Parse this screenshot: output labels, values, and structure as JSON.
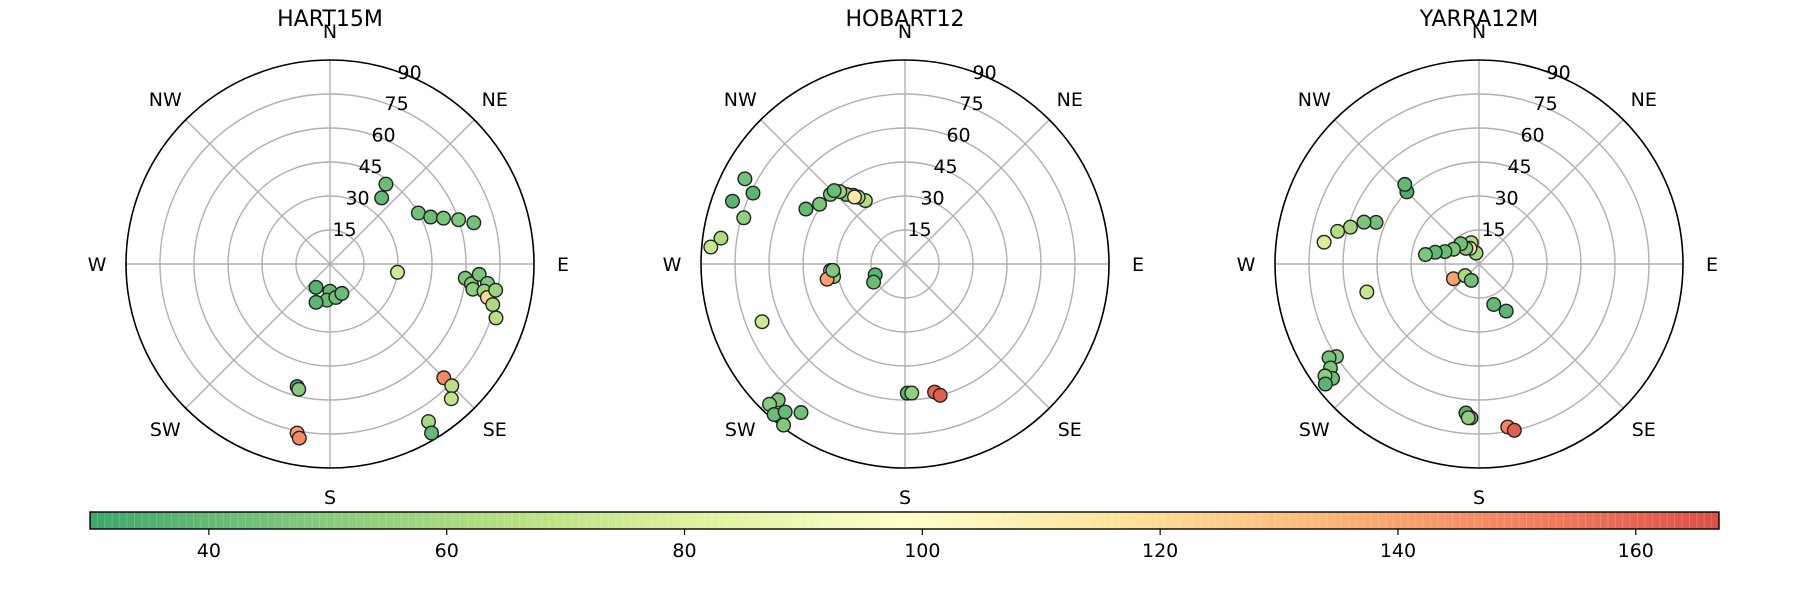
{
  "chart_data": [
    {
      "type": "scatter",
      "projection": "polar",
      "title": "HART15M",
      "direction_labels": [
        "E",
        "NE",
        "N",
        "NW",
        "W",
        "SW",
        "S",
        "SE"
      ],
      "r_ticks": [
        "15",
        "30",
        "45",
        "60",
        "75",
        "90"
      ],
      "rlim": [
        0,
        90
      ],
      "grid": true,
      "points": [
        {
          "az": 35,
          "el": 43,
          "v": 42
        },
        {
          "az": 38,
          "el": 37,
          "v": 40
        },
        {
          "az": 60,
          "el": 45,
          "v": 44
        },
        {
          "az": 65,
          "el": 49,
          "v": 42
        },
        {
          "az": 68,
          "el": 54,
          "v": 46
        },
        {
          "az": 71,
          "el": 60,
          "v": 48
        },
        {
          "az": 74,
          "el": 66,
          "v": 44
        },
        {
          "az": 97,
          "el": 30,
          "v": 74
        },
        {
          "az": 96,
          "el": 60,
          "v": 46
        },
        {
          "az": 98,
          "el": 63,
          "v": 50
        },
        {
          "az": 94,
          "el": 66,
          "v": 46
        },
        {
          "az": 100,
          "el": 64,
          "v": 52
        },
        {
          "az": 97,
          "el": 70,
          "v": 48
        },
        {
          "az": 100,
          "el": 69,
          "v": 56
        },
        {
          "az": 102,
          "el": 71,
          "v": 120
        },
        {
          "az": 104,
          "el": 74,
          "v": 62
        },
        {
          "az": 108,
          "el": 77,
          "v": 66
        },
        {
          "az": 99,
          "el": 74,
          "v": 56
        },
        {
          "az": 135,
          "el": 71,
          "v": 148
        },
        {
          "az": 135,
          "el": 76,
          "v": 66
        },
        {
          "az": 138,
          "el": 80,
          "v": 70
        },
        {
          "az": 148,
          "el": 82,
          "v": 60
        },
        {
          "az": 149,
          "el": 87,
          "v": 40
        },
        {
          "az": 180,
          "el": 12,
          "v": 40
        },
        {
          "az": 185,
          "el": 16,
          "v": 42
        },
        {
          "az": 200,
          "el": 18,
          "v": 38
        },
        {
          "az": 170,
          "el": 15,
          "v": 44
        },
        {
          "az": 158,
          "el": 14,
          "v": 42
        },
        {
          "az": 211,
          "el": 12,
          "v": 36
        },
        {
          "az": 195,
          "el": 56,
          "v": 34
        },
        {
          "az": 194,
          "el": 57,
          "v": 50
        },
        {
          "az": 191,
          "el": 76,
          "v": 140
        },
        {
          "az": 190,
          "el": 78,
          "v": 148
        }
      ]
    },
    {
      "type": "scatter",
      "projection": "polar",
      "title": "HOBART12",
      "direction_labels": [
        "E",
        "NE",
        "N",
        "NW",
        "W",
        "SW",
        "S",
        "SE"
      ],
      "r_ticks": [
        "15",
        "30",
        "45",
        "60",
        "75",
        "90"
      ],
      "rlim": [
        0,
        90
      ],
      "grid": true,
      "points": [
        {
          "az": 328,
          "el": 33,
          "v": 64
        },
        {
          "az": 325,
          "el": 36,
          "v": 60
        },
        {
          "az": 323,
          "el": 38,
          "v": 58
        },
        {
          "az": 320,
          "el": 40,
          "v": 50
        },
        {
          "az": 323,
          "el": 37,
          "v": 112
        },
        {
          "az": 318,
          "el": 43,
          "v": 56
        },
        {
          "az": 313,
          "el": 45,
          "v": 48
        },
        {
          "az": 305,
          "el": 46,
          "v": 46
        },
        {
          "az": 299,
          "el": 50,
          "v": 40
        },
        {
          "az": 316,
          "el": 45,
          "v": 42
        },
        {
          "az": 295,
          "el": 74,
          "v": 38
        },
        {
          "az": 298,
          "el": 80,
          "v": 44
        },
        {
          "az": 290,
          "el": 81,
          "v": 38
        },
        {
          "az": 286,
          "el": 74,
          "v": 54
        },
        {
          "az": 278,
          "el": 82,
          "v": 62
        },
        {
          "az": 275,
          "el": 86,
          "v": 72
        },
        {
          "az": 248,
          "el": 68,
          "v": 74
        },
        {
          "az": 265,
          "el": 33,
          "v": 62
        },
        {
          "az": 260,
          "el": 32,
          "v": 56
        },
        {
          "az": 259,
          "el": 35,
          "v": 140
        },
        {
          "az": 265,
          "el": 32,
          "v": 48
        },
        {
          "az": 250,
          "el": 14,
          "v": 38
        },
        {
          "az": 240,
          "el": 16,
          "v": 42
        },
        {
          "az": 223,
          "el": 82,
          "v": 46
        },
        {
          "az": 224,
          "el": 86,
          "v": 50
        },
        {
          "az": 221,
          "el": 88,
          "v": 42
        },
        {
          "az": 219,
          "el": 84,
          "v": 40
        },
        {
          "az": 215,
          "el": 80,
          "v": 44
        },
        {
          "az": 217,
          "el": 89,
          "v": 48
        },
        {
          "az": 179,
          "el": 57,
          "v": 36
        },
        {
          "az": 177,
          "el": 57,
          "v": 54
        },
        {
          "az": 167,
          "el": 58,
          "v": 160
        },
        {
          "az": 165,
          "el": 60,
          "v": 162
        }
      ]
    },
    {
      "type": "scatter",
      "projection": "polar",
      "title": "YARRA12M",
      "direction_labels": [
        "E",
        "NE",
        "N",
        "NW",
        "W",
        "SW",
        "S",
        "SE"
      ],
      "r_ticks": [
        "15",
        "30",
        "45",
        "60",
        "75",
        "90"
      ],
      "rlim": [
        0,
        90
      ],
      "grid": true,
      "points": [
        {
          "az": 340,
          "el": 10,
          "v": 62
        },
        {
          "az": 345,
          "el": 5,
          "v": 58
        },
        {
          "az": 330,
          "el": 8,
          "v": 120
        },
        {
          "az": 320,
          "el": 9,
          "v": 48
        },
        {
          "az": 318,
          "el": 12,
          "v": 44
        },
        {
          "az": 300,
          "el": 13,
          "v": 48
        },
        {
          "az": 290,
          "el": 16,
          "v": 42
        },
        {
          "az": 285,
          "el": 20,
          "v": 40
        },
        {
          "az": 280,
          "el": 24,
          "v": 46
        },
        {
          "az": 315,
          "el": 45,
          "v": 34
        },
        {
          "az": 317,
          "el": 48,
          "v": 40
        },
        {
          "az": 292,
          "el": 49,
          "v": 44
        },
        {
          "az": 290,
          "el": 54,
          "v": 46
        },
        {
          "az": 286,
          "el": 59,
          "v": 60
        },
        {
          "az": 283,
          "el": 64,
          "v": 64
        },
        {
          "az": 278,
          "el": 69,
          "v": 78
        },
        {
          "az": 256,
          "el": 51,
          "v": 72
        },
        {
          "az": 240,
          "el": 13,
          "v": 140
        },
        {
          "az": 230,
          "el": 8,
          "v": 60
        },
        {
          "az": 205,
          "el": 8,
          "v": 44
        },
        {
          "az": 160,
          "el": 19,
          "v": 40
        },
        {
          "az": 150,
          "el": 24,
          "v": 38
        },
        {
          "az": 237,
          "el": 75,
          "v": 50
        },
        {
          "az": 238,
          "el": 78,
          "v": 44
        },
        {
          "az": 235,
          "el": 80,
          "v": 46
        },
        {
          "az": 232,
          "el": 82,
          "v": 42
        },
        {
          "az": 234,
          "el": 84,
          "v": 52
        },
        {
          "az": 232,
          "el": 86,
          "v": 38
        },
        {
          "az": 185,
          "el": 66,
          "v": 36
        },
        {
          "az": 183,
          "el": 68,
          "v": 44
        },
        {
          "az": 184,
          "el": 68,
          "v": 54
        },
        {
          "az": 170,
          "el": 73,
          "v": 150
        },
        {
          "az": 168,
          "el": 75,
          "v": 162
        }
      ]
    }
  ],
  "colorbar": {
    "colormap": "RdYlGn_r",
    "min": 30,
    "max": 167,
    "ticks": [
      40,
      60,
      80,
      100,
      120,
      140,
      160
    ],
    "tick_labels": [
      "40",
      "60",
      "80",
      "100",
      "120",
      "140",
      "160"
    ]
  }
}
